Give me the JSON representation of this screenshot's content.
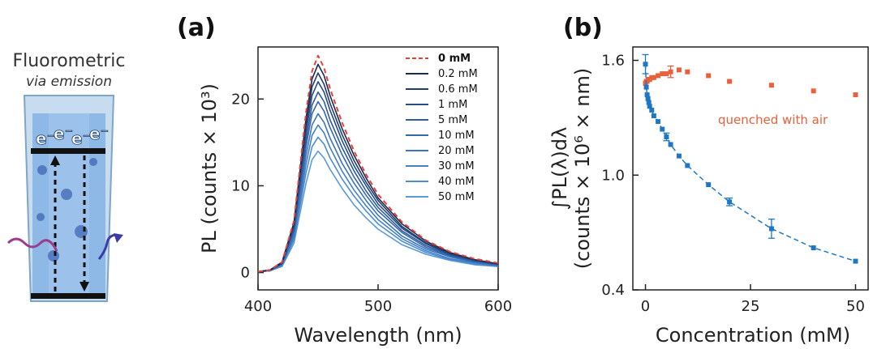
{
  "illustration": {
    "title": "Fluorometric",
    "subtitle": "via emission",
    "electron_labels": [
      "e⁻",
      "e⁻",
      "e⁻",
      "e⁻"
    ]
  },
  "chart_data": [
    {
      "panel_label": "(a)",
      "type": "line",
      "xlabel": "Wavelength (nm)",
      "ylabel": "PL (counts × 10³)",
      "xlim": [
        400,
        600
      ],
      "ylim": [
        -2,
        26
      ],
      "xticks": [
        400,
        500,
        600
      ],
      "yticks": [
        0,
        10,
        20
      ],
      "grid": false,
      "legend_position": "top-right",
      "x": [
        400,
        410,
        420,
        430,
        440,
        445,
        450,
        455,
        460,
        470,
        480,
        490,
        500,
        520,
        540,
        560,
        580,
        600
      ],
      "series": [
        {
          "name": "0 mM",
          "color": "#e8413c",
          "dashed": true,
          "values": [
            0.1,
            0.3,
            1.2,
            6.0,
            18.5,
            23.2,
            25.0,
            23.6,
            21.2,
            17.3,
            14.0,
            11.3,
            9.0,
            5.8,
            3.7,
            2.4,
            1.6,
            1.1
          ]
        },
        {
          "name": "0.2 mM",
          "color": "#1a2c4e",
          "values": [
            0.1,
            0.3,
            1.2,
            5.8,
            17.8,
            22.3,
            24.0,
            22.7,
            20.4,
            16.6,
            13.5,
            10.9,
            8.6,
            5.6,
            3.6,
            2.3,
            1.5,
            1.0
          ]
        },
        {
          "name": "0.6 mM",
          "color": "#213d6b",
          "values": [
            0.1,
            0.3,
            1.1,
            5.6,
            17.0,
            21.4,
            23.0,
            21.7,
            19.5,
            15.9,
            12.9,
            10.4,
            8.3,
            5.3,
            3.4,
            2.2,
            1.5,
            1.0
          ]
        },
        {
          "name": "1 mM",
          "color": "#284d86",
          "values": [
            0.1,
            0.3,
            1.1,
            5.3,
            16.2,
            20.4,
            22.0,
            20.8,
            18.7,
            15.2,
            12.3,
            10.0,
            7.9,
            5.1,
            3.3,
            2.1,
            1.4,
            1.0
          ]
        },
        {
          "name": "5 mM",
          "color": "#2f5c9d",
          "values": [
            0.1,
            0.3,
            1.0,
            5.0,
            15.3,
            19.3,
            20.8,
            19.7,
            17.6,
            14.4,
            11.7,
            9.4,
            7.5,
            4.8,
            3.1,
            2.0,
            1.3,
            0.9
          ]
        },
        {
          "name": "10 mM",
          "color": "#3569ad",
          "values": [
            0.1,
            0.3,
            1.0,
            4.8,
            14.5,
            18.3,
            19.7,
            18.6,
            16.7,
            13.6,
            11.0,
            8.9,
            7.1,
            4.6,
            2.9,
            1.9,
            1.3,
            0.9
          ]
        },
        {
          "name": "20 mM",
          "color": "#3b75bb",
          "values": [
            0.1,
            0.2,
            0.9,
            4.4,
            13.5,
            17.0,
            18.3,
            17.3,
            15.5,
            12.6,
            10.3,
            8.3,
            6.6,
            4.2,
            2.7,
            1.8,
            1.2,
            0.8
          ]
        },
        {
          "name": "30 mM",
          "color": "#4381c7",
          "values": [
            0.1,
            0.2,
            0.9,
            4.1,
            12.5,
            15.8,
            17.0,
            16.1,
            14.4,
            11.7,
            9.5,
            7.7,
            6.1,
            3.9,
            2.5,
            1.6,
            1.1,
            0.8
          ]
        },
        {
          "name": "40 mM",
          "color": "#4c8cd1",
          "values": [
            0.1,
            0.2,
            0.8,
            3.8,
            11.5,
            14.5,
            15.6,
            14.8,
            13.2,
            10.8,
            8.8,
            7.1,
            5.6,
            3.6,
            2.3,
            1.5,
            1.0,
            0.7
          ]
        },
        {
          "name": "50 mM",
          "color": "#5a9ad9",
          "values": [
            0.1,
            0.2,
            0.7,
            3.4,
            10.3,
            13.0,
            14.0,
            13.2,
            11.9,
            9.7,
            7.8,
            6.3,
            5.0,
            3.2,
            2.1,
            1.4,
            0.9,
            0.7
          ]
        }
      ]
    },
    {
      "panel_label": "(b)",
      "type": "scatter",
      "xlabel": "Concentration (mM)",
      "ylabel_top": "∫PL(λ)dλ",
      "ylabel_bottom": "(counts × 10⁶ × nm)",
      "xlim": [
        -3,
        53
      ],
      "ylim": [
        0.4,
        1.67
      ],
      "xticks": [
        0,
        25,
        50
      ],
      "yticks": [
        "1.6",
        "1.0",
        "0.4"
      ],
      "grid": false,
      "annotation": "quenched with air",
      "series": [
        {
          "name": "quenched with air",
          "color": "#e8603c",
          "x": [
            0,
            0.2,
            0.4,
            0.6,
            0.8,
            1,
            1.5,
            2,
            3,
            4,
            5,
            6,
            8,
            10,
            15,
            20,
            30,
            40,
            50
          ],
          "y": [
            1.48,
            1.49,
            1.49,
            1.5,
            1.5,
            1.5,
            1.51,
            1.51,
            1.52,
            1.53,
            1.53,
            1.54,
            1.55,
            1.54,
            1.52,
            1.49,
            1.47,
            1.44,
            1.42
          ],
          "yerr": [
            0,
            0,
            0,
            0,
            0,
            0,
            0,
            0,
            0,
            0,
            0,
            0.03,
            0,
            0,
            0,
            0,
            0,
            0,
            0
          ]
        },
        {
          "name": "",
          "color": "#1f77c4",
          "fit": "dashed",
          "x": [
            0,
            0.2,
            0.4,
            0.6,
            0.8,
            1,
            1.5,
            2,
            3,
            4,
            5,
            6,
            8,
            10,
            15,
            20,
            30,
            40,
            50
          ],
          "y": [
            1.58,
            1.46,
            1.42,
            1.4,
            1.38,
            1.36,
            1.34,
            1.31,
            1.28,
            1.24,
            1.2,
            1.16,
            1.1,
            1.05,
            0.95,
            0.86,
            0.72,
            0.62,
            0.55
          ],
          "yerr": [
            0.05,
            0,
            0,
            0,
            0,
            0,
            0,
            0,
            0,
            0,
            0.02,
            0,
            0,
            0,
            0,
            0.02,
            0.05,
            0,
            0
          ]
        }
      ]
    }
  ]
}
